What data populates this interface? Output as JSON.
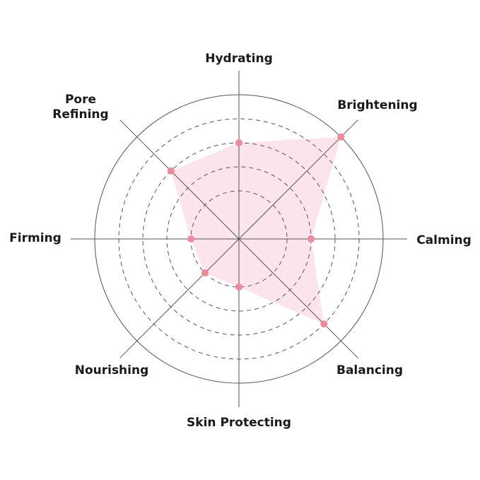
{
  "chart_data": {
    "type": "radar",
    "categories": [
      "Hydrating",
      "Brightening",
      "Calming",
      "Balancing",
      "Skin Protecting",
      "Nourishing",
      "Firming",
      "Pore Refining"
    ],
    "label_lines": [
      [
        "Hydrating"
      ],
      [
        "Brightening"
      ],
      [
        "Calming"
      ],
      [
        "Balancing"
      ],
      [
        "Skin Protecting"
      ],
      [
        "Nourishing"
      ],
      [
        "Firming"
      ],
      [
        "Pore",
        "Refining"
      ]
    ],
    "values": [
      4,
      6,
      3,
      5,
      2,
      2,
      2,
      4
    ],
    "rlim": [
      0,
      6
    ],
    "rings": [
      2,
      3,
      4,
      5,
      6
    ],
    "grid": true,
    "colors": {
      "fill": "#fce4ec",
      "point": "#ee8a9c",
      "grid": "#555555"
    }
  }
}
